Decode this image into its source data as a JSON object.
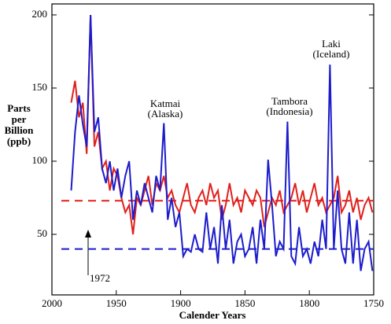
{
  "chart_data": {
    "type": "line",
    "xlabel": "Calender Years",
    "ylabel_lines": [
      "Parts",
      "per",
      "Billion",
      "(ppb)"
    ],
    "x": [
      1985,
      1982,
      1979,
      1976,
      1973,
      1970,
      1967,
      1964,
      1961,
      1958,
      1955,
      1952,
      1949,
      1946,
      1943,
      1940,
      1937,
      1934,
      1931,
      1928,
      1925,
      1922,
      1919,
      1916,
      1913,
      1910,
      1907,
      1904,
      1901,
      1898,
      1895,
      1892,
      1889,
      1886,
      1883,
      1880,
      1877,
      1874,
      1871,
      1868,
      1865,
      1862,
      1859,
      1856,
      1853,
      1850,
      1847,
      1844,
      1841,
      1838,
      1835,
      1832,
      1829,
      1826,
      1823,
      1820,
      1817,
      1814,
      1811,
      1808,
      1805,
      1802,
      1799,
      1796,
      1793,
      1790,
      1787,
      1784,
      1781,
      1778,
      1775,
      1772,
      1769,
      1766,
      1763,
      1760,
      1757,
      1754,
      1751
    ],
    "series": [
      {
        "color": "#e0201c",
        "values": [
          140,
          155,
          130,
          140,
          105,
          200,
          110,
          120,
          95,
          100,
          80,
          95,
          90,
          75,
          65,
          70,
          50,
          75,
          70,
          80,
          90,
          70,
          85,
          80,
          90,
          75,
          80,
          70,
          65,
          75,
          85,
          70,
          65,
          75,
          80,
          70,
          85,
          75,
          80,
          60,
          70,
          85,
          70,
          75,
          65,
          80,
          75,
          70,
          80,
          75,
          55,
          65,
          75,
          70,
          80,
          65,
          70,
          75,
          85,
          70,
          80,
          65,
          75,
          85,
          70,
          75,
          65,
          70,
          75,
          90,
          65,
          70,
          80,
          65,
          75,
          60,
          70,
          75,
          65
        ]
      },
      {
        "color": "#1c1ccc",
        "values": [
          80,
          120,
          145,
          125,
          110,
          200,
          120,
          130,
          95,
          85,
          100,
          80,
          95,
          75,
          90,
          100,
          60,
          80,
          70,
          85,
          75,
          65,
          90,
          80,
          126,
          60,
          75,
          55,
          65,
          35,
          40,
          38,
          50,
          40,
          38,
          65,
          40,
          55,
          30,
          70,
          40,
          60,
          30,
          45,
          50,
          35,
          40,
          55,
          30,
          60,
          40,
          101,
          70,
          35,
          45,
          40,
          127,
          35,
          30,
          55,
          35,
          40,
          30,
          45,
          35,
          60,
          40,
          166,
          40,
          80,
          40,
          30,
          65,
          30,
          60,
          25,
          40,
          45,
          25
        ]
      }
    ],
    "reference_lines": [
      {
        "value": 73,
        "color": "#e0201c"
      },
      {
        "value": 40,
        "color": "#1c1ccc"
      }
    ],
    "annotations": [
      {
        "lines": [
          "Katmai",
          "(Alaska)"
        ]
      },
      {
        "lines": [
          "Tambora",
          "(Indonesia)"
        ]
      },
      {
        "lines": [
          "Laki",
          "(Iceland)"
        ]
      },
      {
        "lines": [
          "1972"
        ]
      }
    ],
    "xlim": [
      2000,
      1750
    ],
    "xticks": [
      2000,
      1950,
      1900,
      1850,
      1800,
      1750
    ],
    "ylim": [
      8.6,
      207.5
    ],
    "yticks": [
      50,
      100,
      150,
      200
    ]
  }
}
